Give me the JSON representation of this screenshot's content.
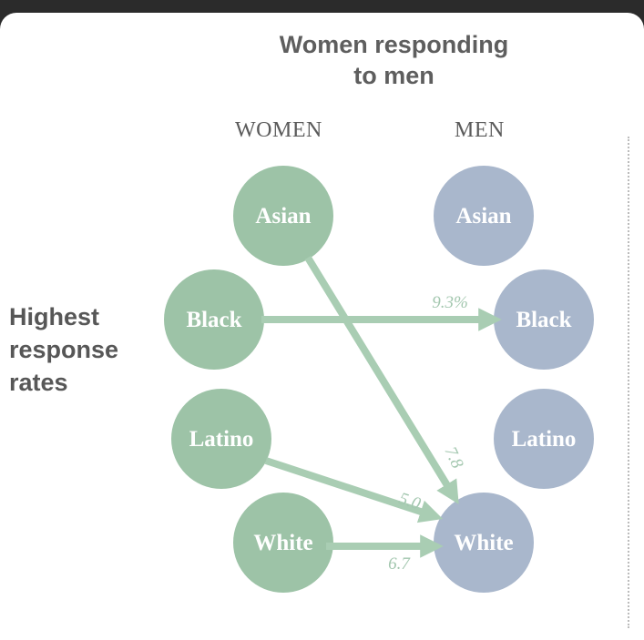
{
  "title": [
    "Women responding",
    "to men"
  ],
  "columns": {
    "women": "WOMEN",
    "men": "MEN"
  },
  "row_label": [
    "Highest",
    "response",
    "rates"
  ],
  "colors": {
    "women_node": "#9dc3a7",
    "men_node": "#a9b7cc",
    "arrow": "#a9cdb3",
    "label": "#a3c7af"
  },
  "women_nodes": [
    "Asian",
    "Black",
    "Latino",
    "White"
  ],
  "men_nodes": [
    "Asian",
    "Black",
    "Latino",
    "White"
  ],
  "flows": [
    {
      "from": "Asian",
      "to": "White",
      "label": "7.8"
    },
    {
      "from": "Black",
      "to": "Black",
      "label": "9.3%"
    },
    {
      "from": "Latino",
      "to": "White",
      "label": "5.0"
    },
    {
      "from": "White",
      "to": "White",
      "label": "6.7"
    }
  ]
}
